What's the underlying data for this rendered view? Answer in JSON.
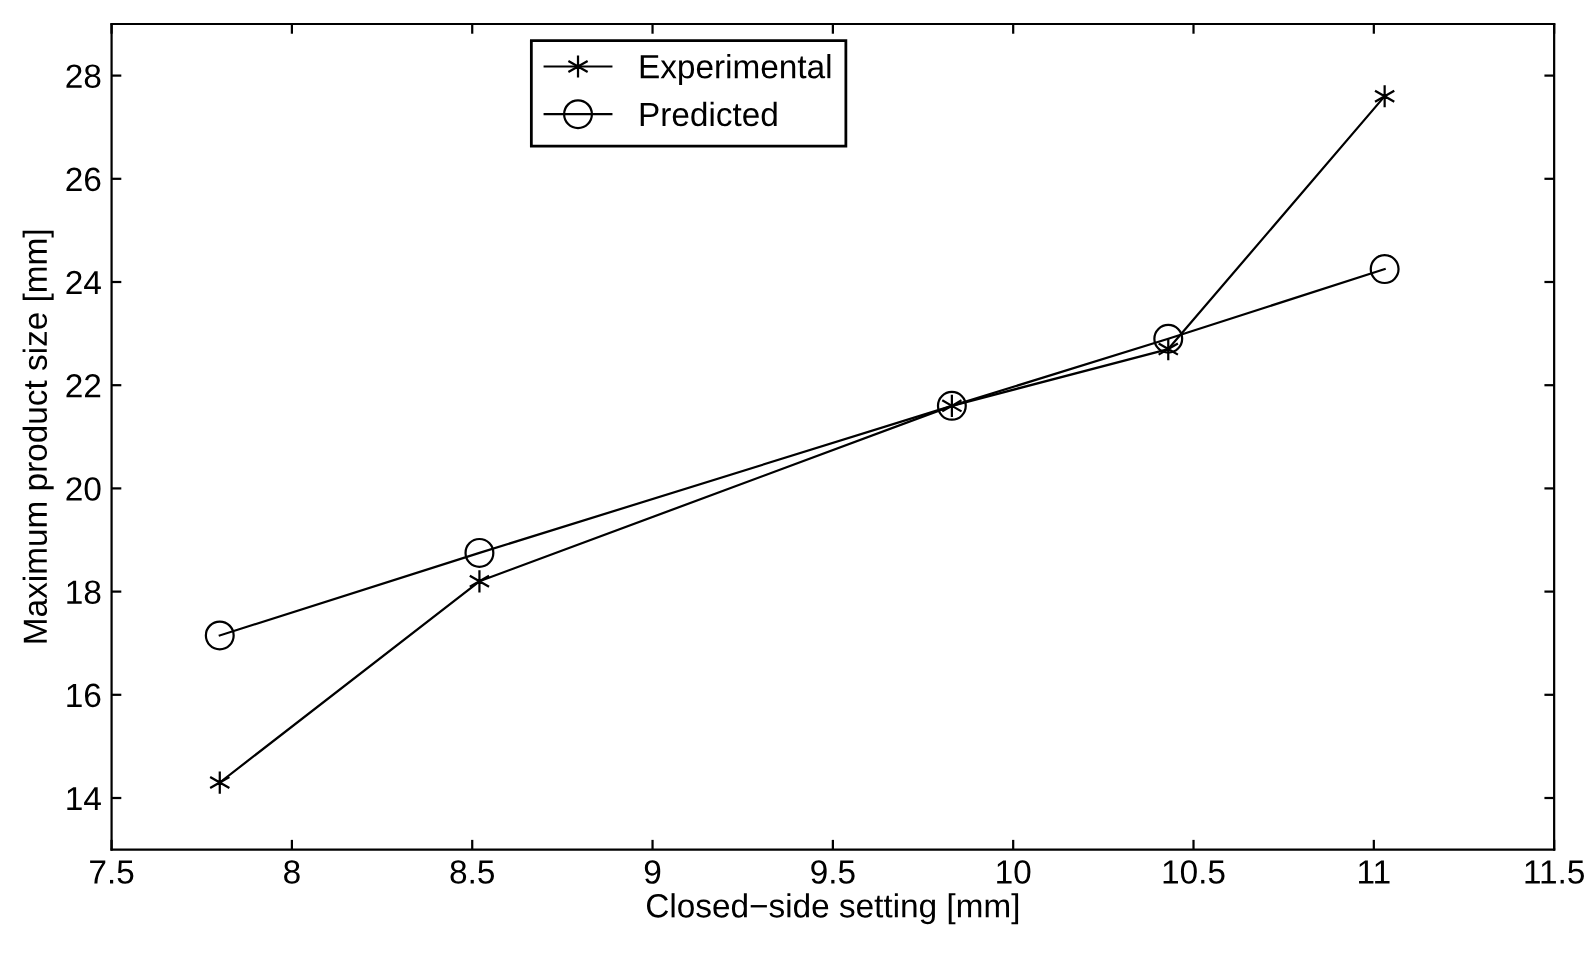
{
  "chart_data": {
    "type": "line",
    "xlabel": "Closed−side setting [mm]",
    "ylabel": "Maximum product size [mm]",
    "x": [
      7.8,
      8.52,
      9.83,
      10.43,
      11.03
    ],
    "series": [
      {
        "name": "Experimental",
        "color": "#000000",
        "marker": "cross",
        "values": [
          14.3,
          18.2,
          21.6,
          22.7,
          27.6
        ]
      },
      {
        "name": "Predicted",
        "color": "#000000",
        "marker": "circle",
        "values": [
          17.15,
          18.75,
          21.6,
          22.9,
          24.25
        ]
      }
    ],
    "xlim": [
      7.5,
      11.5
    ],
    "xticks": [
      7.5,
      8,
      8.5,
      9,
      9.5,
      10,
      10.5,
      11,
      11.5
    ],
    "ylim": [
      13,
      29
    ],
    "yticks": [
      14,
      16,
      18,
      20,
      22,
      24,
      26,
      28
    ],
    "grid": false,
    "legend": "top",
    "line_style": "solid"
  }
}
